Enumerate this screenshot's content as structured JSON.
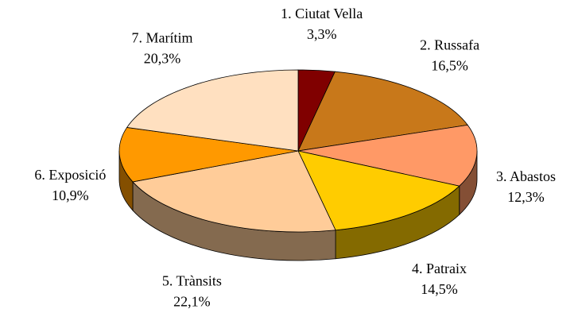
{
  "chart_data": {
    "type": "pie",
    "categories": [
      "1. Ciutat Vella",
      "2. Russafa",
      "3. Abastos",
      "4. Patraix",
      "5. Trànsits",
      "6. Exposició",
      "7. Marítim"
    ],
    "values": [
      3.3,
      16.5,
      12.3,
      14.5,
      22.1,
      10.9,
      20.3
    ],
    "value_labels": [
      "3,3%",
      "16,5%",
      "12,3%",
      "14,5%",
      "22,1%",
      "10,9%",
      "20,3%"
    ],
    "colors": [
      "#800000",
      "#c8781a",
      "#ff9966",
      "#ffcc00",
      "#ffcc99",
      "#ff9900",
      "#ffe0c0"
    ]
  }
}
